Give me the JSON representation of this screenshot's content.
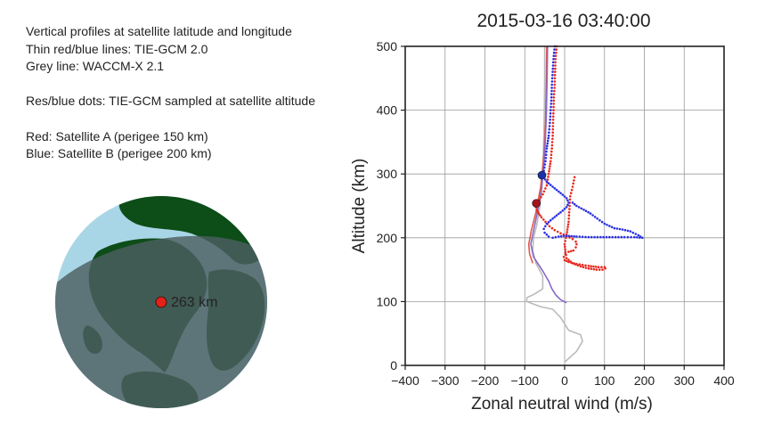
{
  "notes": {
    "line1": "Vertical profiles at satellite latitude and longitude",
    "line2": "Thin red/blue lines: TIE-GCM 2.0",
    "line3": "Grey line: WACCM-X 2.1",
    "line4": "Res/blue dots: TIE-GCM sampled at satellite altitude",
    "line5": "Red: Satellite A (perigee 150 km)",
    "line6": "Blue: Satellite B (perigee 200 km)"
  },
  "globe": {
    "marker_label": "263 km",
    "colors": {
      "ocean_day": "#a9d6e6",
      "ocean_night": "#4c5e60",
      "land": "#0d4d18",
      "marker": "#e32119"
    }
  },
  "chart_data": {
    "type": "line",
    "title": "2015-03-16 03:40:00",
    "xlabel": "Zonal neutral wind (m/s)",
    "ylabel": "Altitude (km)",
    "xlim": [
      -400,
      400
    ],
    "ylim": [
      0,
      500
    ],
    "xticks": [
      -400,
      -300,
      -200,
      -100,
      0,
      100,
      200,
      300,
      400
    ],
    "yticks": [
      0,
      100,
      200,
      300,
      400,
      500
    ],
    "grid": true,
    "series": [
      {
        "style": "thin-line",
        "color": "#bbbbbb",
        "points": [
          [
            0,
            5
          ],
          [
            30,
            22
          ],
          [
            45,
            38
          ],
          [
            40,
            48
          ],
          [
            10,
            55
          ],
          [
            -10,
            75
          ],
          [
            -30,
            88
          ],
          [
            -60,
            92
          ],
          [
            -95,
            100
          ],
          [
            -95,
            106
          ],
          [
            -75,
            112
          ],
          [
            -55,
            120
          ],
          [
            -55,
            140
          ],
          [
            -72,
            160
          ],
          [
            -80,
            180
          ],
          [
            -78,
            200
          ],
          [
            -70,
            220
          ],
          [
            -62,
            250
          ],
          [
            -57,
            280
          ],
          [
            -54,
            320
          ],
          [
            -52,
            360
          ],
          [
            -51,
            400
          ],
          [
            -50,
            450
          ],
          [
            -50,
            500
          ]
        ]
      },
      {
        "style": "thin-line",
        "color": "#e05a48",
        "points": [
          [
            -80,
            160
          ],
          [
            -88,
            175
          ],
          [
            -90,
            190
          ],
          [
            -84,
            210
          ],
          [
            -72,
            240
          ],
          [
            -60,
            280
          ],
          [
            -52,
            330
          ],
          [
            -48,
            380
          ],
          [
            -46,
            440
          ],
          [
            -45,
            500
          ]
        ]
      },
      {
        "style": "thin-line",
        "color": "#8868c8",
        "points": [
          [
            5,
            98
          ],
          [
            -10,
            103
          ],
          [
            -22,
            110
          ],
          [
            -32,
            120
          ],
          [
            -40,
            132
          ],
          [
            -55,
            148
          ],
          [
            -78,
            170
          ],
          [
            -85,
            190
          ],
          [
            -80,
            205
          ],
          [
            -70,
            235
          ],
          [
            -58,
            275
          ],
          [
            -50,
            330
          ],
          [
            -46,
            390
          ],
          [
            -44,
            450
          ],
          [
            -43,
            500
          ]
        ]
      },
      {
        "style": "dots",
        "color": "#e8281f",
        "points": [
          [
            -20,
            500
          ],
          [
            -23,
            480
          ],
          [
            -24,
            460
          ],
          [
            -25,
            440
          ],
          [
            -27,
            420
          ],
          [
            -28,
            400
          ],
          [
            -29,
            380
          ],
          [
            -30,
            360
          ],
          [
            -32,
            340
          ],
          [
            -35,
            320
          ],
          [
            -40,
            300
          ],
          [
            -45,
            282
          ],
          [
            -55,
            268
          ],
          [
            -68,
            255
          ],
          [
            -72,
            248
          ],
          [
            -70,
            244
          ],
          [
            -65,
            238
          ],
          [
            -58,
            232
          ],
          [
            -48,
            225
          ],
          [
            -38,
            218
          ],
          [
            -25,
            212
          ],
          [
            -10,
            207
          ],
          [
            5,
            203
          ],
          [
            20,
            198
          ],
          [
            28,
            194
          ],
          [
            30,
            190
          ],
          [
            28,
            185
          ],
          [
            22,
            180
          ],
          [
            10,
            178
          ],
          [
            2,
            175
          ],
          [
            -2,
            170
          ],
          [
            0,
            165
          ],
          [
            10,
            162
          ],
          [
            30,
            159
          ],
          [
            60,
            156
          ],
          [
            85,
            154
          ],
          [
            100,
            154
          ],
          [
            102,
            152
          ],
          [
            95,
            150
          ],
          [
            80,
            150
          ],
          [
            60,
            152
          ],
          [
            40,
            155
          ],
          [
            20,
            160
          ],
          [
            5,
            168
          ],
          [
            2,
            178
          ],
          [
            0,
            190
          ],
          [
            5,
            205
          ],
          [
            10,
            225
          ],
          [
            12,
            245
          ],
          [
            14,
            265
          ],
          [
            20,
            280
          ],
          [
            25,
            295
          ]
        ]
      },
      {
        "style": "dots",
        "color": "#2a30e0",
        "points": [
          [
            -25,
            500
          ],
          [
            -28,
            480
          ],
          [
            -30,
            460
          ],
          [
            -32,
            440
          ],
          [
            -33,
            420
          ],
          [
            -35,
            400
          ],
          [
            -37,
            380
          ],
          [
            -40,
            360
          ],
          [
            -45,
            340
          ],
          [
            -48,
            320
          ],
          [
            -52,
            305
          ],
          [
            -56,
            298
          ],
          [
            -45,
            288
          ],
          [
            -30,
            280
          ],
          [
            -10,
            270
          ],
          [
            5,
            262
          ],
          [
            10,
            255
          ],
          [
            5,
            248
          ],
          [
            -10,
            240
          ],
          [
            -30,
            230
          ],
          [
            -45,
            222
          ],
          [
            -52,
            214
          ],
          [
            -50,
            208
          ],
          [
            -40,
            202
          ],
          [
            -30,
            200
          ],
          [
            -15,
            202
          ],
          [
            5,
            203
          ],
          [
            30,
            202
          ],
          [
            60,
            201
          ],
          [
            90,
            201
          ],
          [
            120,
            201
          ],
          [
            150,
            201
          ],
          [
            175,
            201
          ],
          [
            195,
            200
          ],
          [
            185,
            204
          ],
          [
            165,
            210
          ],
          [
            145,
            213
          ],
          [
            125,
            215
          ],
          [
            100,
            222
          ],
          [
            82,
            230
          ],
          [
            65,
            238
          ],
          [
            48,
            244
          ],
          [
            30,
            250
          ],
          [
            20,
            255
          ]
        ]
      },
      {
        "style": "marker",
        "color": "#1a2faa",
        "points": [
          [
            -57,
            298
          ]
        ]
      },
      {
        "style": "marker",
        "color": "#a3141c",
        "points": [
          [
            -71,
            254
          ]
        ]
      }
    ]
  }
}
